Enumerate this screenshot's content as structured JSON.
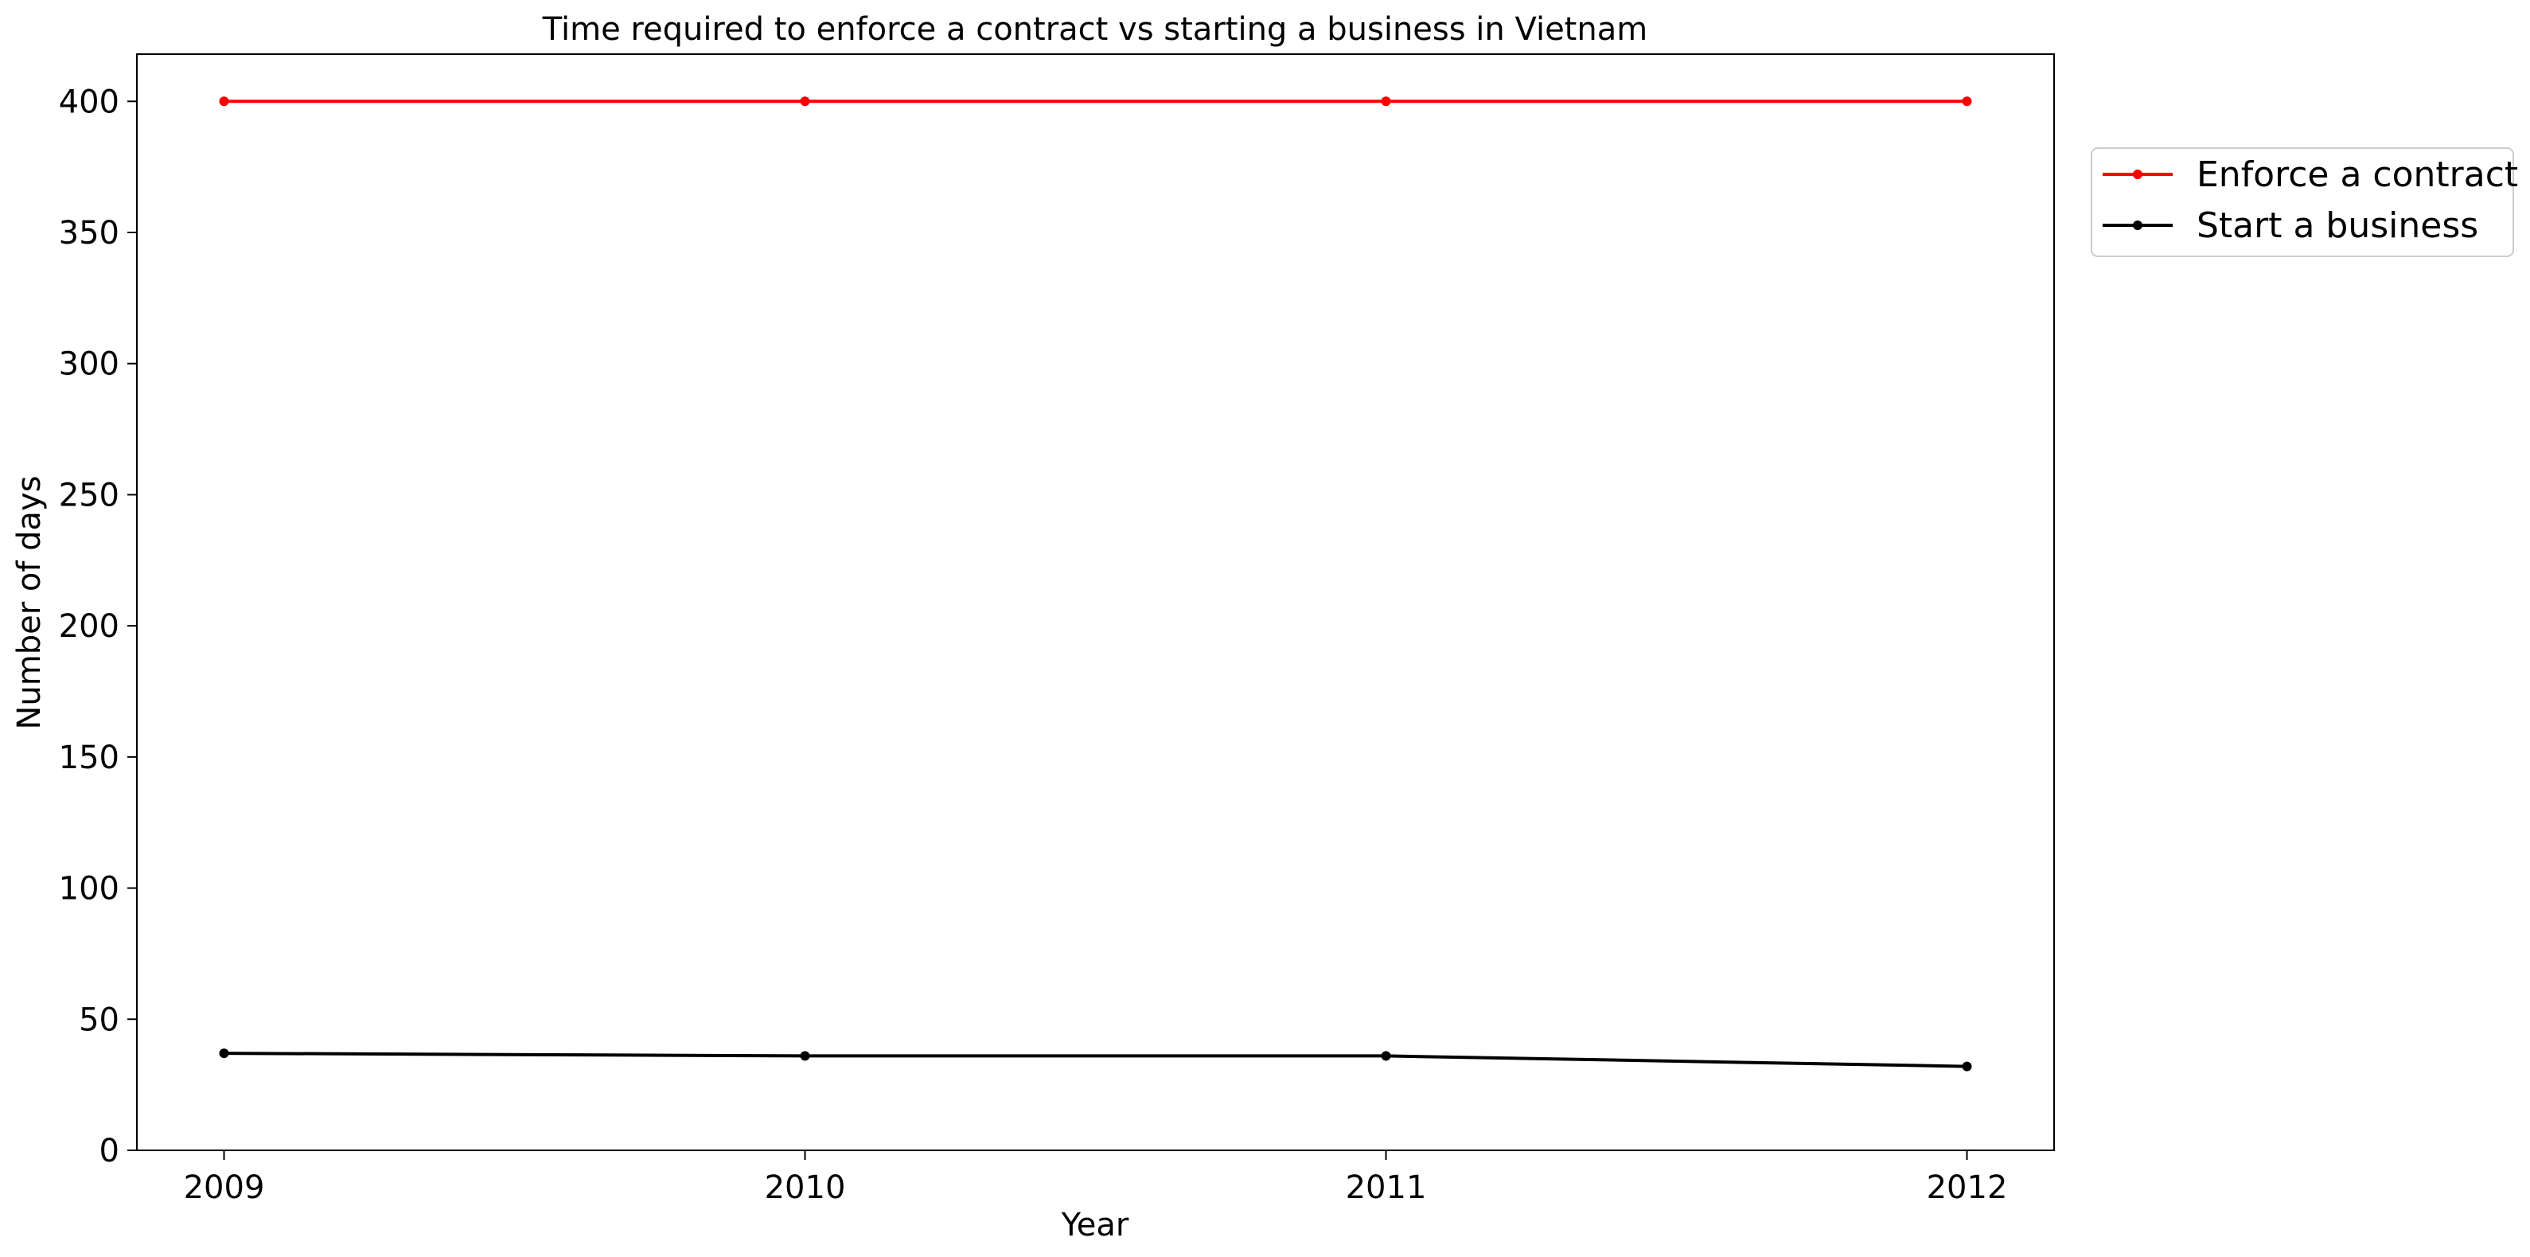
{
  "chart_data": {
    "type": "line",
    "title": "Time required to enforce a contract vs starting a business in Vietnam",
    "xlabel": "Year",
    "ylabel": "Number of days",
    "x": [
      2009,
      2010,
      2011,
      2012
    ],
    "x_tick_labels": [
      "2009",
      "2010",
      "2011",
      "2012"
    ],
    "ylim": [
      0,
      418
    ],
    "y_ticks": [
      0,
      50,
      100,
      150,
      200,
      250,
      300,
      350,
      400
    ],
    "y_tick_labels": [
      "0",
      "50",
      "100",
      "150",
      "200",
      "250",
      "300",
      "350",
      "400"
    ],
    "grid": false,
    "legend_position": "outside-top-right",
    "series": [
      {
        "name": "Enforce a contract",
        "color": "#ff0000",
        "marker": "dot",
        "values": [
          400,
          400,
          400,
          400
        ]
      },
      {
        "name": "Start a business",
        "color": "#000000",
        "marker": "dot",
        "values": [
          37,
          36,
          36,
          32
        ]
      }
    ]
  }
}
